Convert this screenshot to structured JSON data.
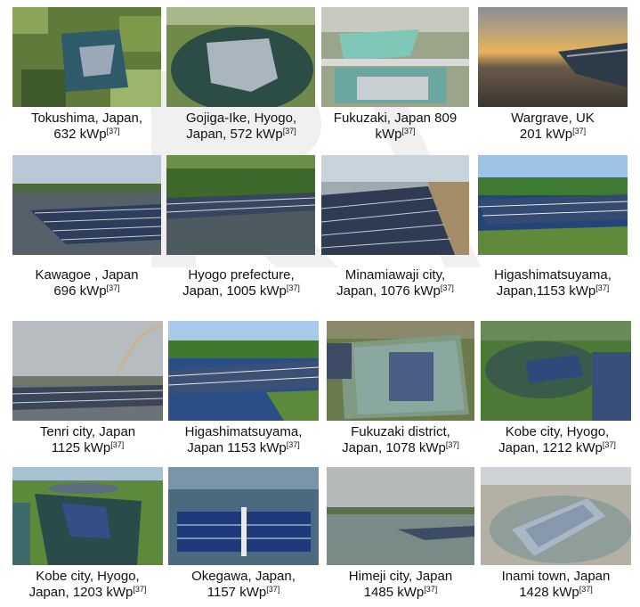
{
  "panels": [
    {
      "line1": "Tokushima, Japan,",
      "line2": "632 kWp",
      "ref": "[37]"
    },
    {
      "line1": "Gojiga-Ike, Hyogo,",
      "line2": "Japan, 572 kWp",
      "ref": "[37]"
    },
    {
      "line1": "Fukuzaki, Japan 809",
      "line2": "kWp",
      "ref": "[37]"
    },
    {
      "line1": "Wargrave, UK",
      "line2": "201 kWp",
      "ref": "[37]"
    },
    {
      "line1": "Kawagoe , Japan",
      "line2": "696 kWp",
      "ref": "[37]"
    },
    {
      "line1": "Hyogo prefecture,",
      "line2": "Japan, 1005 kWp",
      "ref": "[37]"
    },
    {
      "line1": "Minamiawaji city,",
      "line2": "Japan, 1076 kWp",
      "ref": "[37]"
    },
    {
      "line1": "Higashimatsuyama,",
      "line2": "Japan,1153 kWp",
      "ref": "[37]"
    },
    {
      "line1": "Tenri city, Japan",
      "line2": "1125 kWp",
      "ref": "[37]"
    },
    {
      "line1": "Higashimatsuyama,",
      "line2": "Japan 1153 kWp",
      "ref": "[37]"
    },
    {
      "line1": "Fukuzaki district,",
      "line2": "Japan, 1078 kWp",
      "ref": "[37]"
    },
    {
      "line1": "Kobe city, Hyogo,",
      "line2": "Japan, 1212 kWp",
      "ref": "[37]"
    },
    {
      "line1": "Kobe city, Hyogo,",
      "line2": "Japan, 1203 kWp",
      "ref": "[37]"
    },
    {
      "line1": "Okegawa, Japan,",
      "line2": "1157 kWp",
      "ref": "[37]"
    },
    {
      "line1": "Himeji city, Japan",
      "line2": "1485 kWp",
      "ref": "[37]"
    },
    {
      "line1": "Inami town, Japan",
      "line2": "1428 kWp",
      "ref": "[37]"
    }
  ]
}
